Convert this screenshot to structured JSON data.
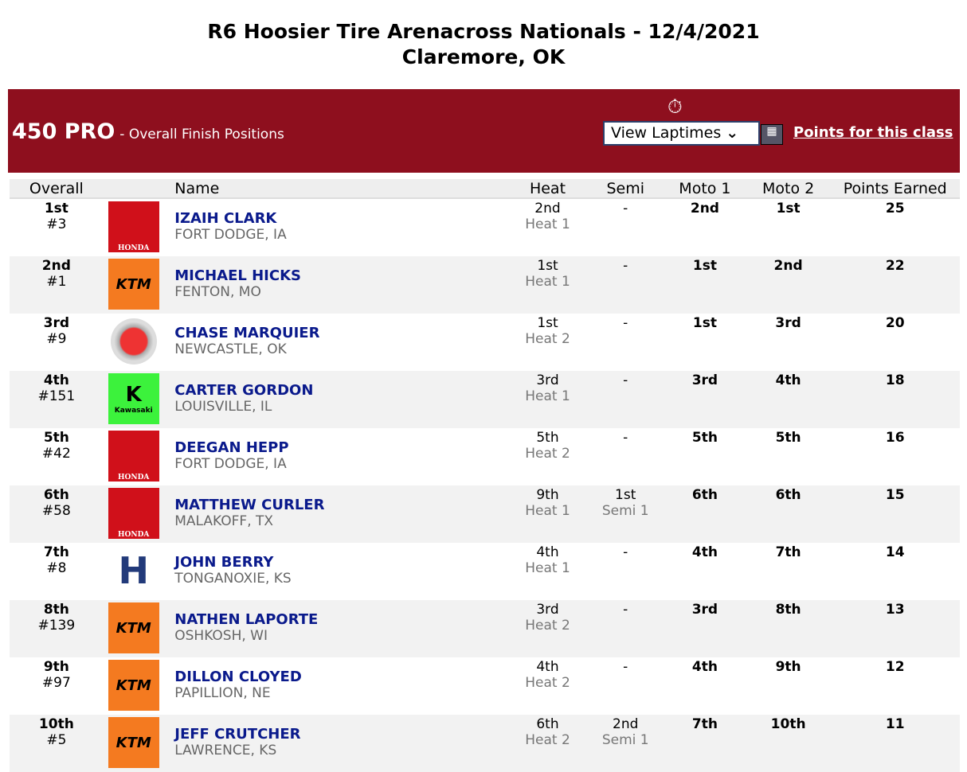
{
  "title_line1": "R6 Hoosier Tire Arenacross Nationals - 12/4/2021",
  "title_line2": "Claremore, OK",
  "class_name": "450 PRO",
  "class_subtitle": "- Overall Finish Positions",
  "laptimes_select": "View Laptimes",
  "points_link": "Points for this class",
  "columns": [
    "Overall",
    "Name",
    "Heat",
    "Semi",
    "Moto 1",
    "Moto 2",
    "Points Earned"
  ],
  "rows": [
    {
      "pos": "1st",
      "num": "#3",
      "brand": "honda",
      "name": "IZAIH CLARK",
      "loc": "FORT DODGE, IA",
      "heat": "2nd",
      "heat_n": "Heat 1",
      "semi": "-",
      "semi_n": "",
      "m1": "2nd",
      "m2": "1st",
      "pts": "25"
    },
    {
      "pos": "2nd",
      "num": "#1",
      "brand": "ktm",
      "name": "MICHAEL HICKS",
      "loc": "FENTON, MO",
      "heat": "1st",
      "heat_n": "Heat 1",
      "semi": "-",
      "semi_n": "",
      "m1": "1st",
      "m2": "2nd",
      "pts": "22"
    },
    {
      "pos": "3rd",
      "num": "#9",
      "brand": "yamaha",
      "name": "CHASE MARQUIER",
      "loc": "NEWCASTLE, OK",
      "heat": "1st",
      "heat_n": "Heat 2",
      "semi": "-",
      "semi_n": "",
      "m1": "1st",
      "m2": "3rd",
      "pts": "20"
    },
    {
      "pos": "4th",
      "num": "#151",
      "brand": "kawasaki",
      "name": "CARTER GORDON",
      "loc": "LOUISVILLE, IL",
      "heat": "3rd",
      "heat_n": "Heat 1",
      "semi": "-",
      "semi_n": "",
      "m1": "3rd",
      "m2": "4th",
      "pts": "18"
    },
    {
      "pos": "5th",
      "num": "#42",
      "brand": "honda",
      "name": "DEEGAN HEPP",
      "loc": "FORT DODGE, IA",
      "heat": "5th",
      "heat_n": "Heat 2",
      "semi": "-",
      "semi_n": "",
      "m1": "5th",
      "m2": "5th",
      "pts": "16"
    },
    {
      "pos": "6th",
      "num": "#58",
      "brand": "honda",
      "name": "MATTHEW CURLER",
      "loc": "MALAKOFF, TX",
      "heat": "9th",
      "heat_n": "Heat 1",
      "semi": "1st",
      "semi_n": "Semi 1",
      "m1": "6th",
      "m2": "6th",
      "pts": "15"
    },
    {
      "pos": "7th",
      "num": "#8",
      "brand": "husqvarna",
      "name": "JOHN BERRY",
      "loc": "TONGANOXIE, KS",
      "heat": "4th",
      "heat_n": "Heat 1",
      "semi": "-",
      "semi_n": "",
      "m1": "4th",
      "m2": "7th",
      "pts": "14"
    },
    {
      "pos": "8th",
      "num": "#139",
      "brand": "ktm",
      "name": "NATHEN LAPORTE",
      "loc": "OSHKOSH, WI",
      "heat": "3rd",
      "heat_n": "Heat 2",
      "semi": "-",
      "semi_n": "",
      "m1": "3rd",
      "m2": "8th",
      "pts": "13"
    },
    {
      "pos": "9th",
      "num": "#97",
      "brand": "ktm",
      "name": "DILLON CLOYED",
      "loc": "PAPILLION, NE",
      "heat": "4th",
      "heat_n": "Heat 2",
      "semi": "-",
      "semi_n": "",
      "m1": "4th",
      "m2": "9th",
      "pts": "12"
    },
    {
      "pos": "10th",
      "num": "#5",
      "brand": "ktm",
      "name": "JEFF CRUTCHER",
      "loc": "LAWRENCE, KS",
      "heat": "6th",
      "heat_n": "Heat 2",
      "semi": "2nd",
      "semi_n": "Semi 1",
      "m1": "7th",
      "m2": "10th",
      "pts": "11"
    }
  ],
  "logo_text": {
    "honda": "HONDA",
    "ktm": "KTM",
    "kawasaki": "Kawasaki",
    "husqvarna": "H"
  },
  "colors": {
    "header_bar": "#8e0f1e",
    "name_link": "#0a1a8c",
    "honda": "#d0101a",
    "ktm": "#f47a20",
    "kawasaki": "#3cf23c"
  }
}
